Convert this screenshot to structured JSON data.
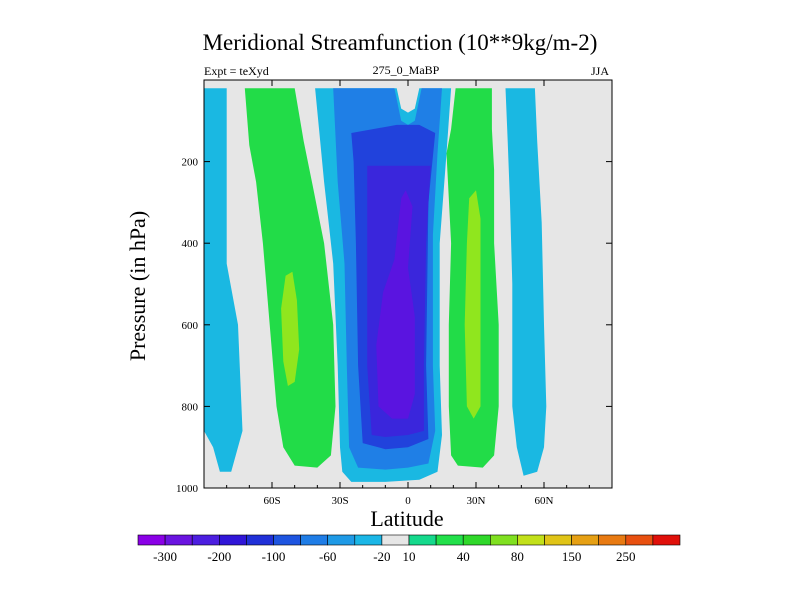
{
  "chart_data": {
    "type": "heatmap",
    "title": "Meridional Streamfunction (10**9kg/m-2)",
    "subtitle_left": "Expt = teXyd",
    "subtitle_center": "275_0_MaBP",
    "subtitle_right": "JJA",
    "xlabel": "Latitude",
    "ylabel": "Pressure (in hPa)",
    "xlim": [
      -90,
      90
    ],
    "ylim": [
      1000,
      0
    ],
    "x_ticks": [
      -60,
      -30,
      0,
      30,
      60
    ],
    "x_tick_labels": [
      "60S",
      "30S",
      "0",
      "30N",
      "60N"
    ],
    "y_ticks": [
      200,
      400,
      600,
      800,
      1000
    ],
    "y_tick_labels": [
      "200",
      "400",
      "600",
      "800",
      "1000"
    ],
    "missing_color": "#e6e6e6",
    "colorbar": {
      "colors": [
        "#8a00e6",
        "#6a14e0",
        "#4c1ee0",
        "#3016d8",
        "#2030d8",
        "#1e55e0",
        "#1f7de6",
        "#1f9ae6",
        "#1bb6e6",
        "#e6e6e6",
        "#15d98c",
        "#22e04a",
        "#2fd82a",
        "#80e020",
        "#c2e01a",
        "#e0c417",
        "#e6a014",
        "#e87a12",
        "#e85010",
        "#e0100a"
      ],
      "labels": [
        "-300",
        "-200",
        "-100",
        "-60",
        "-20",
        "10",
        "40",
        "80",
        "150",
        "250"
      ]
    },
    "regions": [
      {
        "level": -20,
        "points": [
          [
            -90,
            20
          ],
          [
            -80,
            20
          ],
          [
            -80,
            450
          ],
          [
            -75,
            600
          ],
          [
            -73,
            860
          ],
          [
            -78,
            960
          ],
          [
            -83,
            960
          ],
          [
            -86,
            900
          ],
          [
            -90,
            860
          ]
        ]
      },
      {
        "level": 40,
        "points": [
          [
            -80,
            20
          ],
          [
            -50,
            20
          ],
          [
            -46,
            150
          ],
          [
            -42,
            260
          ],
          [
            -37,
            400
          ],
          [
            -33,
            600
          ],
          [
            -32,
            800
          ],
          [
            -34,
            920
          ],
          [
            -40,
            950
          ],
          [
            -50,
            945
          ],
          [
            -55,
            900
          ],
          [
            -58,
            800
          ],
          [
            -61,
            600
          ],
          [
            -64,
            400
          ],
          [
            -67,
            250
          ],
          [
            -70,
            160
          ],
          [
            -72,
            20
          ]
        ]
      },
      {
        "level": 80,
        "points": [
          [
            -51,
            470
          ],
          [
            -49,
            540
          ],
          [
            -48,
            660
          ],
          [
            -50,
            740
          ],
          [
            -53,
            750
          ],
          [
            -55,
            690
          ],
          [
            -56,
            560
          ],
          [
            -54,
            480
          ]
        ]
      },
      {
        "level": -20,
        "points": [
          [
            -41,
            20
          ],
          [
            -5,
            20
          ],
          [
            -3,
            70
          ],
          [
            0,
            80
          ],
          [
            3,
            70
          ],
          [
            5,
            20
          ],
          [
            19,
            20
          ],
          [
            17,
            180
          ],
          [
            14,
            400
          ],
          [
            14,
            700
          ],
          [
            15,
            870
          ],
          [
            13,
            960
          ],
          [
            5,
            980
          ],
          [
            -10,
            985
          ],
          [
            -25,
            985
          ],
          [
            -29,
            960
          ],
          [
            -30,
            900
          ],
          [
            -31,
            700
          ],
          [
            -33,
            450
          ],
          [
            -37,
            250
          ]
        ]
      },
      {
        "level": -60,
        "points": [
          [
            -33,
            20
          ],
          [
            -6,
            20
          ],
          [
            -3,
            100
          ],
          [
            0,
            110
          ],
          [
            3,
            100
          ],
          [
            6,
            20
          ],
          [
            15,
            20
          ],
          [
            13,
            180
          ],
          [
            11,
            380
          ],
          [
            11,
            700
          ],
          [
            12,
            860
          ],
          [
            9,
            940
          ],
          [
            0,
            950
          ],
          [
            -10,
            955
          ],
          [
            -22,
            950
          ],
          [
            -26,
            900
          ],
          [
            -27,
            700
          ],
          [
            -28,
            450
          ],
          [
            -31,
            250
          ]
        ]
      },
      {
        "level": -100,
        "points": [
          [
            -25,
            130
          ],
          [
            -5,
            110
          ],
          [
            5,
            110
          ],
          [
            12,
            130
          ],
          [
            9,
            300
          ],
          [
            8,
            700
          ],
          [
            9,
            880
          ],
          [
            0,
            900
          ],
          [
            -10,
            905
          ],
          [
            -20,
            890
          ],
          [
            -22,
            700
          ],
          [
            -23,
            400
          ],
          [
            -24,
            200
          ]
        ]
      },
      {
        "level": -200,
        "points": [
          [
            -18,
            210
          ],
          [
            10,
            210
          ],
          [
            8,
            400
          ],
          [
            7,
            700
          ],
          [
            7,
            860
          ],
          [
            0,
            870
          ],
          [
            -10,
            875
          ],
          [
            -16,
            870
          ],
          [
            -18,
            700
          ],
          [
            -18,
            400
          ]
        ]
      },
      {
        "level": -300,
        "points": [
          [
            -3,
            290
          ],
          [
            -1,
            270
          ],
          [
            2,
            310
          ],
          [
            0,
            460
          ],
          [
            3,
            580
          ],
          [
            3,
            770
          ],
          [
            0,
            830
          ],
          [
            -7,
            830
          ],
          [
            -13,
            800
          ],
          [
            -14,
            650
          ],
          [
            -11,
            520
          ],
          [
            -6,
            440
          ]
        ]
      },
      {
        "level": 40,
        "points": [
          [
            21,
            20
          ],
          [
            37,
            20
          ],
          [
            37,
            120
          ],
          [
            38,
            220
          ],
          [
            38,
            400
          ],
          [
            40,
            600
          ],
          [
            40,
            800
          ],
          [
            38,
            920
          ],
          [
            33,
            950
          ],
          [
            22,
            945
          ],
          [
            19,
            920
          ],
          [
            18,
            800
          ],
          [
            18,
            600
          ],
          [
            19,
            400
          ],
          [
            17,
            180
          ],
          [
            19,
            120
          ]
        ]
      },
      {
        "level": 80,
        "points": [
          [
            27,
            290
          ],
          [
            30,
            270
          ],
          [
            32,
            340
          ],
          [
            32,
            800
          ],
          [
            29,
            830
          ],
          [
            26,
            800
          ],
          [
            25,
            600
          ],
          [
            26,
            400
          ]
        ]
      },
      {
        "level": -20,
        "points": [
          [
            43,
            20
          ],
          [
            56,
            20
          ],
          [
            57,
            150
          ],
          [
            59,
            350
          ],
          [
            60,
            600
          ],
          [
            61,
            800
          ],
          [
            60,
            900
          ],
          [
            57,
            960
          ],
          [
            51,
            970
          ],
          [
            48,
            900
          ],
          [
            46,
            800
          ],
          [
            46,
            500
          ],
          [
            45,
            300
          ],
          [
            44,
            150
          ]
        ]
      }
    ]
  }
}
